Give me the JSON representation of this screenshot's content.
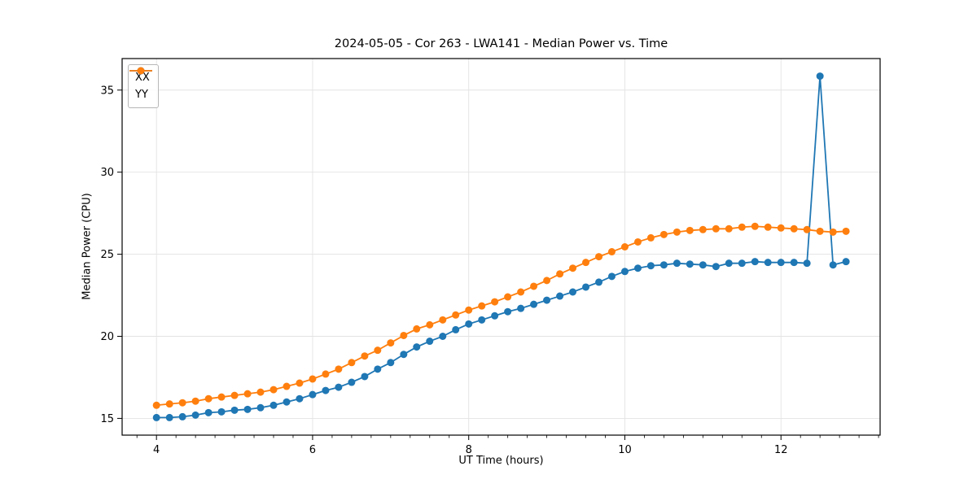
{
  "chart_data": {
    "type": "line",
    "title": "2024-05-05 - Cor 263 - LWA141 - Median Power vs. Time",
    "xlabel": "UT Time (hours)",
    "ylabel": "Median Power (CPU)",
    "xlim": [
      3.56,
      13.27
    ],
    "ylim": [
      13.98,
      36.92
    ],
    "xticks": [
      4,
      6,
      8,
      10,
      12
    ],
    "x_minor_step": 0.25,
    "yticks": [
      15,
      20,
      25,
      30,
      35
    ],
    "grid": true,
    "grid_color": "#e3e3e3",
    "background": "#ffffff",
    "legend_position": "upper-left",
    "x": [
      4.0,
      4.167,
      4.333,
      4.5,
      4.667,
      4.833,
      5.0,
      5.167,
      5.333,
      5.5,
      5.667,
      5.833,
      6.0,
      6.167,
      6.333,
      6.5,
      6.667,
      6.833,
      7.0,
      7.167,
      7.333,
      7.5,
      7.667,
      7.833,
      8.0,
      8.167,
      8.333,
      8.5,
      8.667,
      8.833,
      9.0,
      9.167,
      9.333,
      9.5,
      9.667,
      9.833,
      10.0,
      10.167,
      10.333,
      10.5,
      10.667,
      10.833,
      11.0,
      11.167,
      11.333,
      11.5,
      11.667,
      11.833,
      12.0,
      12.167,
      12.333,
      12.5,
      12.667,
      12.833
    ],
    "series": [
      {
        "name": "XX",
        "color": "#1f77b4",
        "marker": "circle",
        "values": [
          15.05,
          15.05,
          15.1,
          15.2,
          15.35,
          15.4,
          15.5,
          15.55,
          15.65,
          15.8,
          16.0,
          16.2,
          16.45,
          16.7,
          16.9,
          17.2,
          17.55,
          18.0,
          18.4,
          18.9,
          19.35,
          19.7,
          20.0,
          20.4,
          20.75,
          21.0,
          21.25,
          21.5,
          21.7,
          21.95,
          22.2,
          22.45,
          22.7,
          23.0,
          23.3,
          23.65,
          23.95,
          24.15,
          24.3,
          24.35,
          24.45,
          24.4,
          24.35,
          24.25,
          24.45,
          24.45,
          24.55,
          24.5,
          24.5,
          24.5,
          24.45,
          35.85,
          24.35,
          24.55
        ]
      },
      {
        "name": "YY",
        "color": "#ff7f0e",
        "marker": "circle",
        "values": [
          15.8,
          15.88,
          15.95,
          16.05,
          16.2,
          16.3,
          16.4,
          16.5,
          16.6,
          16.75,
          16.95,
          17.15,
          17.4,
          17.7,
          18.0,
          18.4,
          18.8,
          19.15,
          19.6,
          20.05,
          20.45,
          20.7,
          21.0,
          21.3,
          21.6,
          21.85,
          22.1,
          22.4,
          22.7,
          23.05,
          23.4,
          23.8,
          24.15,
          24.5,
          24.85,
          25.15,
          25.45,
          25.75,
          26.0,
          26.2,
          26.35,
          26.45,
          26.5,
          26.55,
          26.55,
          26.65,
          26.7,
          26.65,
          26.6,
          26.55,
          26.5,
          26.4,
          26.35,
          26.4
        ]
      }
    ]
  }
}
